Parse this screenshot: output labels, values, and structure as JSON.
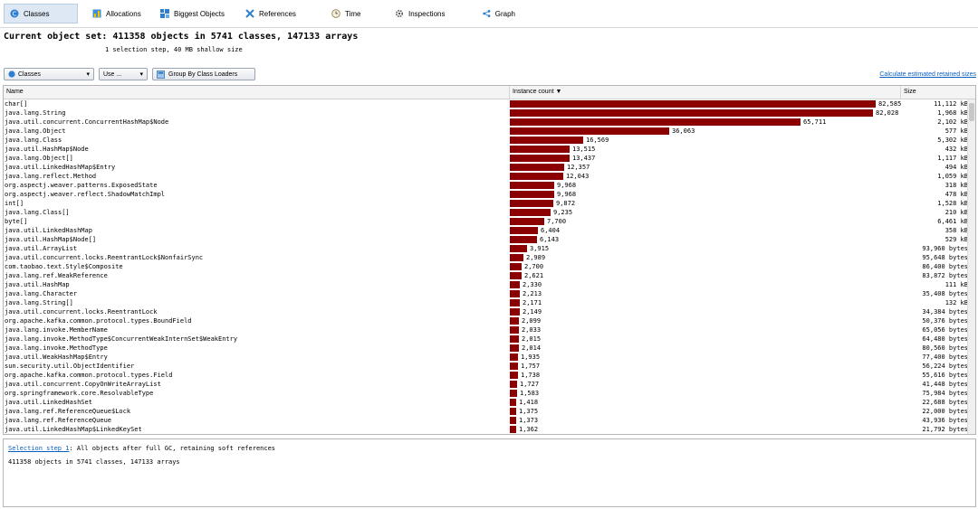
{
  "tabs": [
    {
      "label": "Classes",
      "icon": "classes-icon",
      "active": true
    },
    {
      "label": "Allocations",
      "icon": "allocations-icon",
      "active": false
    },
    {
      "label": "Biggest Objects",
      "icon": "biggest-objects-icon",
      "active": false
    },
    {
      "label": "References",
      "icon": "references-icon",
      "active": false
    },
    {
      "label": "Time",
      "icon": "clock-icon",
      "active": false
    },
    {
      "label": "Inspections",
      "icon": "gear-icon",
      "active": false
    },
    {
      "label": "Graph",
      "icon": "graph-icon",
      "active": false
    }
  ],
  "header": {
    "title": "Current object set: 411358 objects in 5741 classes, 147133 arrays",
    "subtitle": "1 selection step, 40 MB shallow size"
  },
  "controls": {
    "classes_select": "Classes",
    "use_button": "Use ...",
    "group_button": "Group By Class Loaders",
    "calc_link": "Calculate estimated retained sizes"
  },
  "columns": {
    "name": "Name",
    "instance_count": "Instance count",
    "size": "Size"
  },
  "max_count": 82585,
  "rows": [
    {
      "name": "char[]",
      "count": "82,585",
      "value": 82585,
      "size": "11,112 kB"
    },
    {
      "name": "java.lang.String",
      "count": "82,028",
      "value": 82028,
      "size": "1,968 kB"
    },
    {
      "name": "java.util.concurrent.ConcurrentHashMap$Node",
      "count": "65,711",
      "value": 65711,
      "size": "2,102 kB"
    },
    {
      "name": "java.lang.Object",
      "count": "36,063",
      "value": 36063,
      "size": "577 kB"
    },
    {
      "name": "java.lang.Class",
      "count": "16,569",
      "value": 16569,
      "size": "5,302 kB"
    },
    {
      "name": "java.util.HashMap$Node",
      "count": "13,515",
      "value": 13515,
      "size": "432 kB"
    },
    {
      "name": "java.lang.Object[]",
      "count": "13,437",
      "value": 13437,
      "size": "1,117 kB"
    },
    {
      "name": "java.util.LinkedHashMap$Entry",
      "count": "12,357",
      "value": 12357,
      "size": "494 kB"
    },
    {
      "name": "java.lang.reflect.Method",
      "count": "12,043",
      "value": 12043,
      "size": "1,059 kB"
    },
    {
      "name": "org.aspectj.weaver.patterns.ExposedState",
      "count": "9,968",
      "value": 9968,
      "size": "318 kB"
    },
    {
      "name": "org.aspectj.weaver.reflect.ShadowMatchImpl",
      "count": "9,968",
      "value": 9968,
      "size": "478 kB"
    },
    {
      "name": "int[]",
      "count": "9,872",
      "value": 9872,
      "size": "1,528 kB"
    },
    {
      "name": "java.lang.Class[]",
      "count": "9,235",
      "value": 9235,
      "size": "210 kB"
    },
    {
      "name": "byte[]",
      "count": "7,700",
      "value": 7700,
      "size": "6,461 kB"
    },
    {
      "name": "java.util.LinkedHashMap",
      "count": "6,404",
      "value": 6404,
      "size": "358 kB"
    },
    {
      "name": "java.util.HashMap$Node[]",
      "count": "6,143",
      "value": 6143,
      "size": "529 kB"
    },
    {
      "name": "java.util.ArrayList",
      "count": "3,915",
      "value": 3915,
      "size": "93,960 bytes"
    },
    {
      "name": "java.util.concurrent.locks.ReentrantLock$NonfairSync",
      "count": "2,989",
      "value": 2989,
      "size": "95,648 bytes"
    },
    {
      "name": "com.taobao.text.Style$Composite",
      "count": "2,700",
      "value": 2700,
      "size": "86,400 bytes"
    },
    {
      "name": "java.lang.ref.WeakReference",
      "count": "2,621",
      "value": 2621,
      "size": "83,872 bytes"
    },
    {
      "name": "java.util.HashMap",
      "count": "2,330",
      "value": 2330,
      "size": "111 kB"
    },
    {
      "name": "java.lang.Character",
      "count": "2,213",
      "value": 2213,
      "size": "35,408 bytes"
    },
    {
      "name": "java.lang.String[]",
      "count": "2,171",
      "value": 2171,
      "size": "132 kB"
    },
    {
      "name": "java.util.concurrent.locks.ReentrantLock",
      "count": "2,149",
      "value": 2149,
      "size": "34,384 bytes"
    },
    {
      "name": "org.apache.kafka.common.protocol.types.BoundField",
      "count": "2,099",
      "value": 2099,
      "size": "50,376 bytes"
    },
    {
      "name": "java.lang.invoke.MemberName",
      "count": "2,033",
      "value": 2033,
      "size": "65,056 bytes"
    },
    {
      "name": "java.lang.invoke.MethodType$ConcurrentWeakInternSet$WeakEntry",
      "count": "2,015",
      "value": 2015,
      "size": "64,480 bytes"
    },
    {
      "name": "java.lang.invoke.MethodType",
      "count": "2,014",
      "value": 2014,
      "size": "80,560 bytes"
    },
    {
      "name": "java.util.WeakHashMap$Entry",
      "count": "1,935",
      "value": 1935,
      "size": "77,400 bytes"
    },
    {
      "name": "sun.security.util.ObjectIdentifier",
      "count": "1,757",
      "value": 1757,
      "size": "56,224 bytes"
    },
    {
      "name": "org.apache.kafka.common.protocol.types.Field",
      "count": "1,738",
      "value": 1738,
      "size": "55,616 bytes"
    },
    {
      "name": "java.util.concurrent.CopyOnWriteArrayList",
      "count": "1,727",
      "value": 1727,
      "size": "41,448 bytes"
    },
    {
      "name": "org.springframework.core.ResolvableType",
      "count": "1,583",
      "value": 1583,
      "size": "75,984 bytes"
    },
    {
      "name": "java.util.LinkedHashSet",
      "count": "1,418",
      "value": 1418,
      "size": "22,688 bytes"
    },
    {
      "name": "java.lang.ref.ReferenceQueue$Lock",
      "count": "1,375",
      "value": 1375,
      "size": "22,000 bytes"
    },
    {
      "name": "java.lang.ref.ReferenceQueue",
      "count": "1,373",
      "value": 1373,
      "size": "43,936 bytes"
    },
    {
      "name": "java.util.LinkedHashMap$LinkedKeySet",
      "count": "1,362",
      "value": 1362,
      "size": "21,792 bytes"
    }
  ],
  "bottom": {
    "step_link": "Selection step 1",
    "step_desc": ": All objects after full GC, retaining soft references",
    "summary": "411358 objects in 5741 classes, 147133 arrays"
  }
}
